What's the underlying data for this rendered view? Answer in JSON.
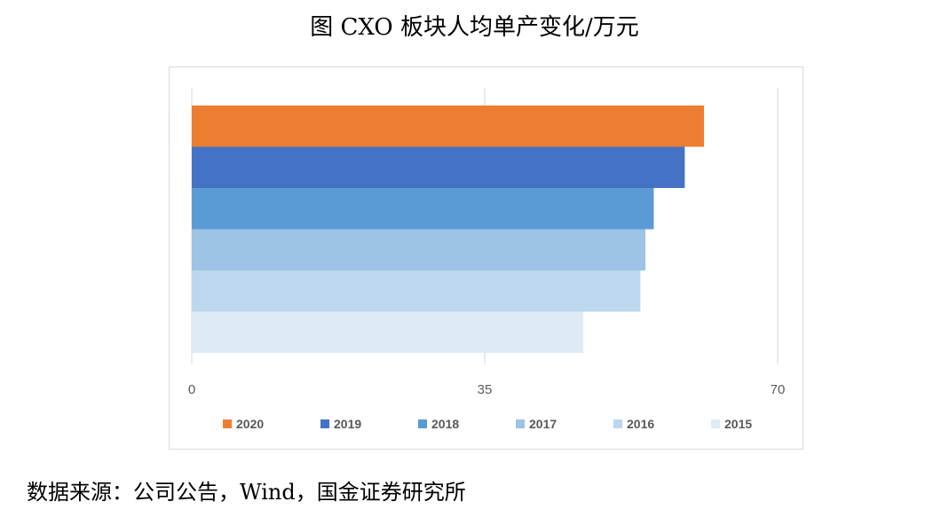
{
  "title": "图 CXO 板块人均单产变化/万元",
  "source": "数据来源：公司公告，Wind，国金证券研究所",
  "chart_data": {
    "type": "bar",
    "orientation": "horizontal",
    "x_ticks": [
      "0",
      "35",
      "70"
    ],
    "xlim": [
      0,
      70
    ],
    "grid": true,
    "legend_position": "bottom",
    "series": [
      {
        "name": "2020",
        "value": 61.2,
        "color": "#ed7d31"
      },
      {
        "name": "2019",
        "value": 58.9,
        "color": "#4472c4"
      },
      {
        "name": "2018",
        "value": 55.2,
        "color": "#5b9bd5"
      },
      {
        "name": "2017",
        "value": 54.2,
        "color": "#9dc3e6"
      },
      {
        "name": "2016",
        "value": 53.6,
        "color": "#bdd7ee"
      },
      {
        "name": "2015",
        "value": 46.8,
        "color": "#deebf7"
      }
    ]
  }
}
